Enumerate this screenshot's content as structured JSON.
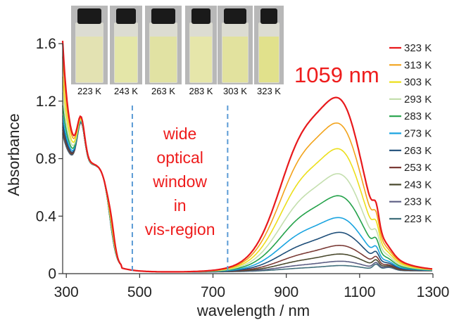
{
  "chart_data": {
    "type": "line",
    "title": "",
    "xlabel": "wavelength / nm",
    "ylabel": "Absorbance",
    "xlim": [
      290,
      1300
    ],
    "ylim": [
      0,
      1.6
    ],
    "x_ticks": [
      300,
      500,
      700,
      900,
      1100,
      1300
    ],
    "y_ticks": [
      0,
      0.4,
      0.8,
      1.2,
      1.6
    ],
    "y_tick_labels": [
      "0",
      "0.4",
      "0.8",
      "1.2",
      "1.6"
    ],
    "grid": false,
    "legend_position": "right",
    "annotations": {
      "peak_label": "1059 nm",
      "window_lines": [
        "wide",
        "optical",
        "window",
        "in",
        "vis-region"
      ],
      "window_bounds": [
        480,
        740
      ]
    },
    "vial_labels": [
      "223 K",
      "243 K",
      "263 K",
      "283 K",
      "303 K",
      "323 K"
    ],
    "series": [
      {
        "name": "323 K",
        "color": "#e8191c",
        "peak": 1.18,
        "shoulder": 0.96,
        "uv_start": 1.58,
        "uv_bump": 0.76
      },
      {
        "name": "313 K",
        "color": "#f2a31b",
        "peak": 1.01,
        "shoulder": 0.8,
        "uv_start": 1.47,
        "uv_bump": 0.7
      },
      {
        "name": "303 K",
        "color": "#ecdf1c",
        "peak": 0.84,
        "shoulder": 0.63,
        "uv_start": 1.33,
        "uv_bump": 0.66
      },
      {
        "name": "293 K",
        "color": "#c4dfae",
        "peak": 0.67,
        "shoulder": 0.49,
        "uv_start": 1.22,
        "uv_bump": 0.63
      },
      {
        "name": "283 K",
        "color": "#24a24a",
        "peak": 0.52,
        "shoulder": 0.37,
        "uv_start": 1.13,
        "uv_bump": 0.61
      },
      {
        "name": "273 K",
        "color": "#1aa4e0",
        "peak": 0.37,
        "shoulder": 0.26,
        "uv_start": 1.06,
        "uv_bump": 0.6
      },
      {
        "name": "263 K",
        "color": "#1e4e79",
        "peak": 0.27,
        "shoulder": 0.17,
        "uv_start": 1.01,
        "uv_bump": 0.6
      },
      {
        "name": "253 K",
        "color": "#7b3b36",
        "peak": 0.18,
        "shoulder": 0.11,
        "uv_start": 0.98,
        "uv_bump": 0.59
      },
      {
        "name": "243 K",
        "color": "#4a4a2e",
        "peak": 0.12,
        "shoulder": 0.07,
        "uv_start": 0.96,
        "uv_bump": 0.58
      },
      {
        "name": "233 K",
        "color": "#5c5e83",
        "peak": 0.07,
        "shoulder": 0.04,
        "uv_start": 0.94,
        "uv_bump": 0.58
      },
      {
        "name": "223 K",
        "color": "#416f7b",
        "peak": 0.04,
        "shoulder": 0.02,
        "uv_start": 0.93,
        "uv_bump": 0.57
      }
    ]
  }
}
